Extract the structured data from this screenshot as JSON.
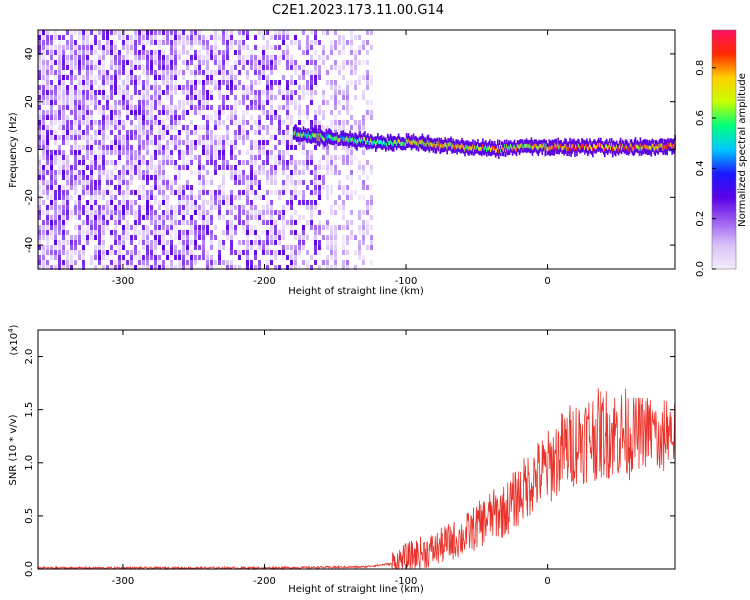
{
  "title": "C2E1.2023.173.11.00.G14",
  "chart_data": [
    {
      "type": "heatmap",
      "xlabel": "Height of straight line (km)",
      "ylabel": "Frequency (Hz)",
      "xlim": [
        -360,
        90
      ],
      "ylim": [
        -50,
        50
      ],
      "xticks": [
        -300,
        -200,
        -100,
        0
      ],
      "xtick_labels": [
        "-300",
        "-200",
        "-100",
        "0"
      ],
      "yticks": [
        -40,
        -20,
        0,
        20,
        40
      ],
      "ytick_labels": [
        "-40",
        "-20",
        "0",
        "20",
        "40"
      ],
      "colorbar": {
        "label": "Normalized spectral amplitude",
        "range": [
          0,
          0.95
        ],
        "ticks": [
          0.0,
          0.2,
          0.4,
          0.6,
          0.8
        ],
        "tick_labels": [
          "0.0",
          "0.2",
          "0.4",
          "0.6",
          "0.8"
        ],
        "colormap": [
          "#f2ecfb",
          "#d9c3f8",
          "#9c5ef0",
          "#5a00e6",
          "#1a1aff",
          "#00c8ff",
          "#00ff7a",
          "#c8ff00",
          "#ffd000",
          "#ff2a00",
          "#ff1060"
        ]
      },
      "noise_region_x": [
        -360,
        -125
      ],
      "ridge": {
        "x": [
          -180,
          -160,
          -140,
          -120,
          -100,
          -80,
          -60,
          -40,
          -20,
          0,
          20,
          40,
          60,
          80,
          90
        ],
        "y": [
          7,
          5,
          4,
          3,
          3,
          2,
          1,
          0,
          1,
          1,
          1,
          1,
          1,
          1,
          2
        ]
      },
      "grid": false
    },
    {
      "type": "line",
      "xlabel": "Height of straight line (km)",
      "ylabel": "SNR (10 * v/v)",
      "y_multiplier_label": "(x10",
      "y_multiplier_exp": "4",
      "y_multiplier_close": ")",
      "xlim": [
        -360,
        90
      ],
      "ylim": [
        0,
        2.25
      ],
      "xticks": [
        -300,
        -200,
        -100,
        0
      ],
      "xtick_labels": [
        "-300",
        "-200",
        "-100",
        "0"
      ],
      "yticks": [
        0.0,
        0.5,
        1.0,
        1.5,
        2.0
      ],
      "ytick_labels": [
        "0.0",
        "0.5",
        "1.0",
        "1.5",
        "2.0"
      ],
      "series": [
        {
          "color": "#e8322a",
          "x": [
            -360,
            -300,
            -200,
            -130,
            -110,
            -100,
            -90,
            -80,
            -70,
            -60,
            -50,
            -40,
            -30,
            -20,
            -10,
            0,
            10,
            20,
            30,
            40,
            50,
            60,
            70,
            75,
            80,
            85,
            90
          ],
          "y": [
            0.01,
            0.01,
            0.01,
            0.02,
            0.05,
            0.1,
            0.15,
            0.18,
            0.25,
            0.3,
            0.4,
            0.5,
            0.55,
            0.7,
            0.85,
            0.95,
            1.1,
            1.2,
            1.25,
            1.28,
            1.28,
            1.27,
            1.3,
            1.3,
            1.15,
            1.35,
            1.25
          ]
        }
      ],
      "grid": false
    }
  ]
}
